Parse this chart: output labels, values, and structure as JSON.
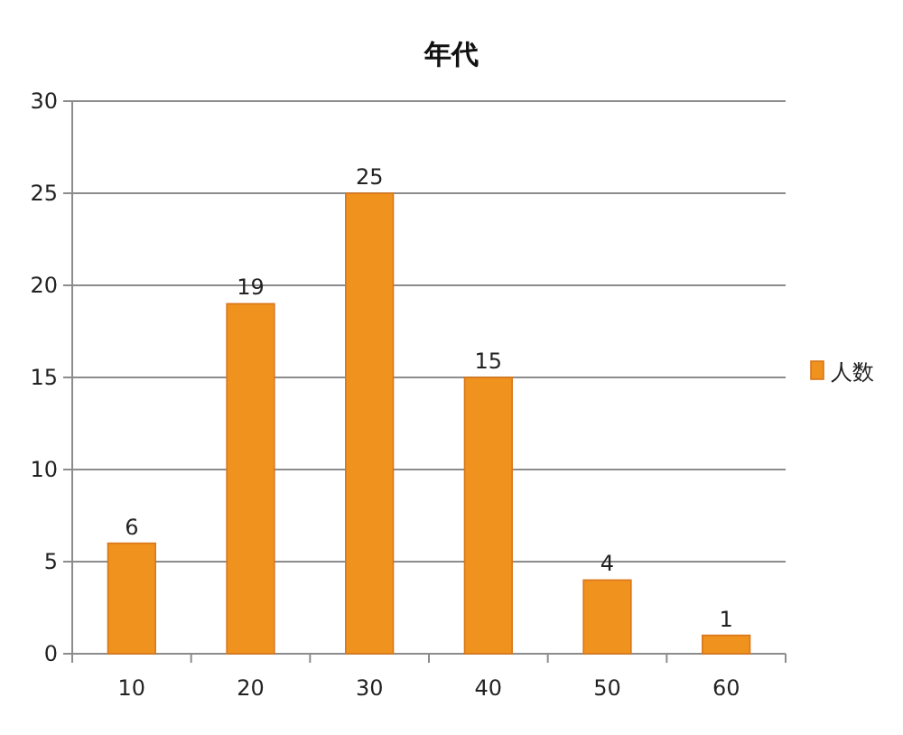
{
  "chart_data": {
    "type": "bar",
    "title": "年代",
    "categories": [
      "10",
      "20",
      "30",
      "40",
      "50",
      "60"
    ],
    "series": [
      {
        "name": "人数",
        "color": "#f0921e",
        "values": [
          6,
          19,
          25,
          15,
          4,
          1
        ]
      }
    ],
    "ylim": [
      0,
      30
    ],
    "yticks": [
      0,
      5,
      10,
      15,
      20,
      25,
      30
    ],
    "grid": "y",
    "legend": "right",
    "data_labels": true
  }
}
